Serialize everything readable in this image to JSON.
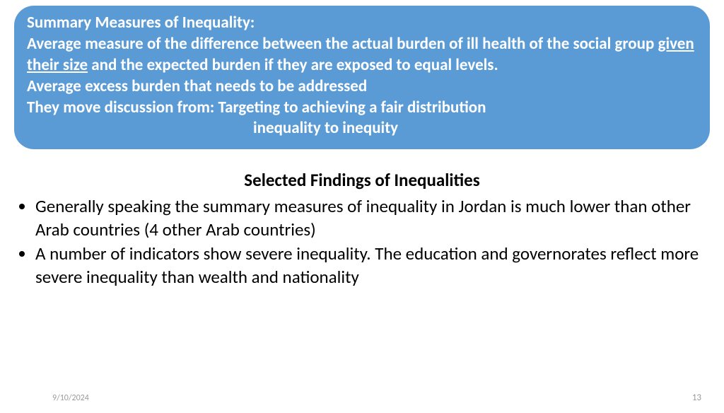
{
  "box": {
    "title": "Summary Measures of Inequality:",
    "line1a": "Average measure of the difference between the actual burden of ill health of the social group ",
    "line1u": "given their size",
    "line1b": " and the expected burden if they are exposed to equal levels.",
    "line2": "Average excess burden that needs to be addressed",
    "line3": "They move discussion from: Targeting to achieving a fair distribution",
    "line4": "inequality to inequity",
    "background_color": "#5b9bd5",
    "text_color": "#ffffff"
  },
  "section": {
    "title": "Selected Findings of Inequalities",
    "bullets": [
      "Generally speaking the summary measures of inequality in Jordan is much lower than other Arab countries (4 other Arab countries)",
      "A number of indicators show severe inequality. The education and governorates reflect more severe inequality than wealth and nationality"
    ]
  },
  "footer": {
    "date": "9/10/2024",
    "page": "13"
  }
}
